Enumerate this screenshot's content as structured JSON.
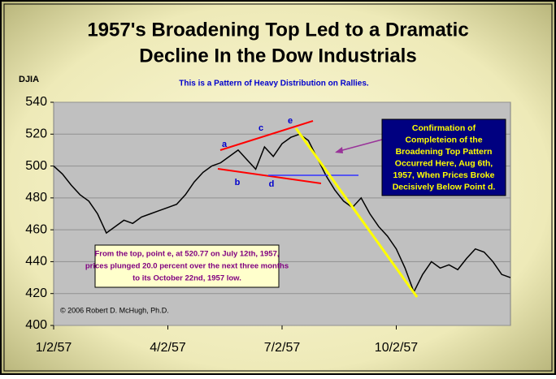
{
  "chart_data": {
    "type": "line",
    "title": [
      "1957's Broadening Top Led to a Dramatic",
      "Decline In the Dow Industrials"
    ],
    "subtitle": "This is a Pattern of Heavy Distribution on Rallies.",
    "y_label": "DJIA",
    "categories": [
      "1/2/57",
      null,
      null,
      null,
      null,
      null,
      null,
      null,
      null,
      null,
      null,
      null,
      null,
      "4/2/57",
      null,
      null,
      null,
      null,
      null,
      null,
      null,
      null,
      null,
      null,
      null,
      null,
      "7/2/57",
      null,
      null,
      null,
      null,
      null,
      null,
      null,
      null,
      null,
      null,
      null,
      null,
      "10/2/57",
      null,
      null,
      null,
      null,
      null,
      null,
      null,
      null,
      null,
      null,
      null,
      null,
      null
    ],
    "series": [
      {
        "name": "DJIA",
        "color": "#000000",
        "values": [
          500,
          495,
          488,
          482,
          478,
          470,
          458,
          462,
          466,
          464,
          468,
          470,
          472,
          474,
          476,
          482,
          490,
          496,
          500,
          502,
          506,
          510,
          504,
          498,
          512,
          506,
          514,
          518,
          520,
          516,
          505,
          494,
          485,
          478,
          474,
          480,
          470,
          462,
          456,
          448,
          436,
          421,
          432,
          440,
          436,
          438,
          435,
          442,
          448,
          446,
          440,
          432,
          430
        ]
      }
    ],
    "ylim": [
      400,
      540
    ],
    "yticks": [
      400,
      420,
      440,
      460,
      480,
      500,
      520,
      540
    ],
    "grid": true,
    "point_labels": [
      "a",
      "b",
      "c",
      "d",
      "e"
    ],
    "annotations": [
      {
        "lines": [
          "Confirmation of",
          "Completeion of the",
          "Broadening Top Pattern",
          "Occurred Here, Aug 6th,",
          "1957, When Prices Broke",
          "Decisively Below Point d."
        ]
      },
      {
        "lines": [
          "From the top, point e, at 520.77 on July 12th, 1957,",
          "prices plunged 20.0 percent over the next three months",
          "to its October 22nd, 1957 low."
        ]
      }
    ],
    "copyright": "© 2006 Robert D. McHugh, Ph.D."
  }
}
